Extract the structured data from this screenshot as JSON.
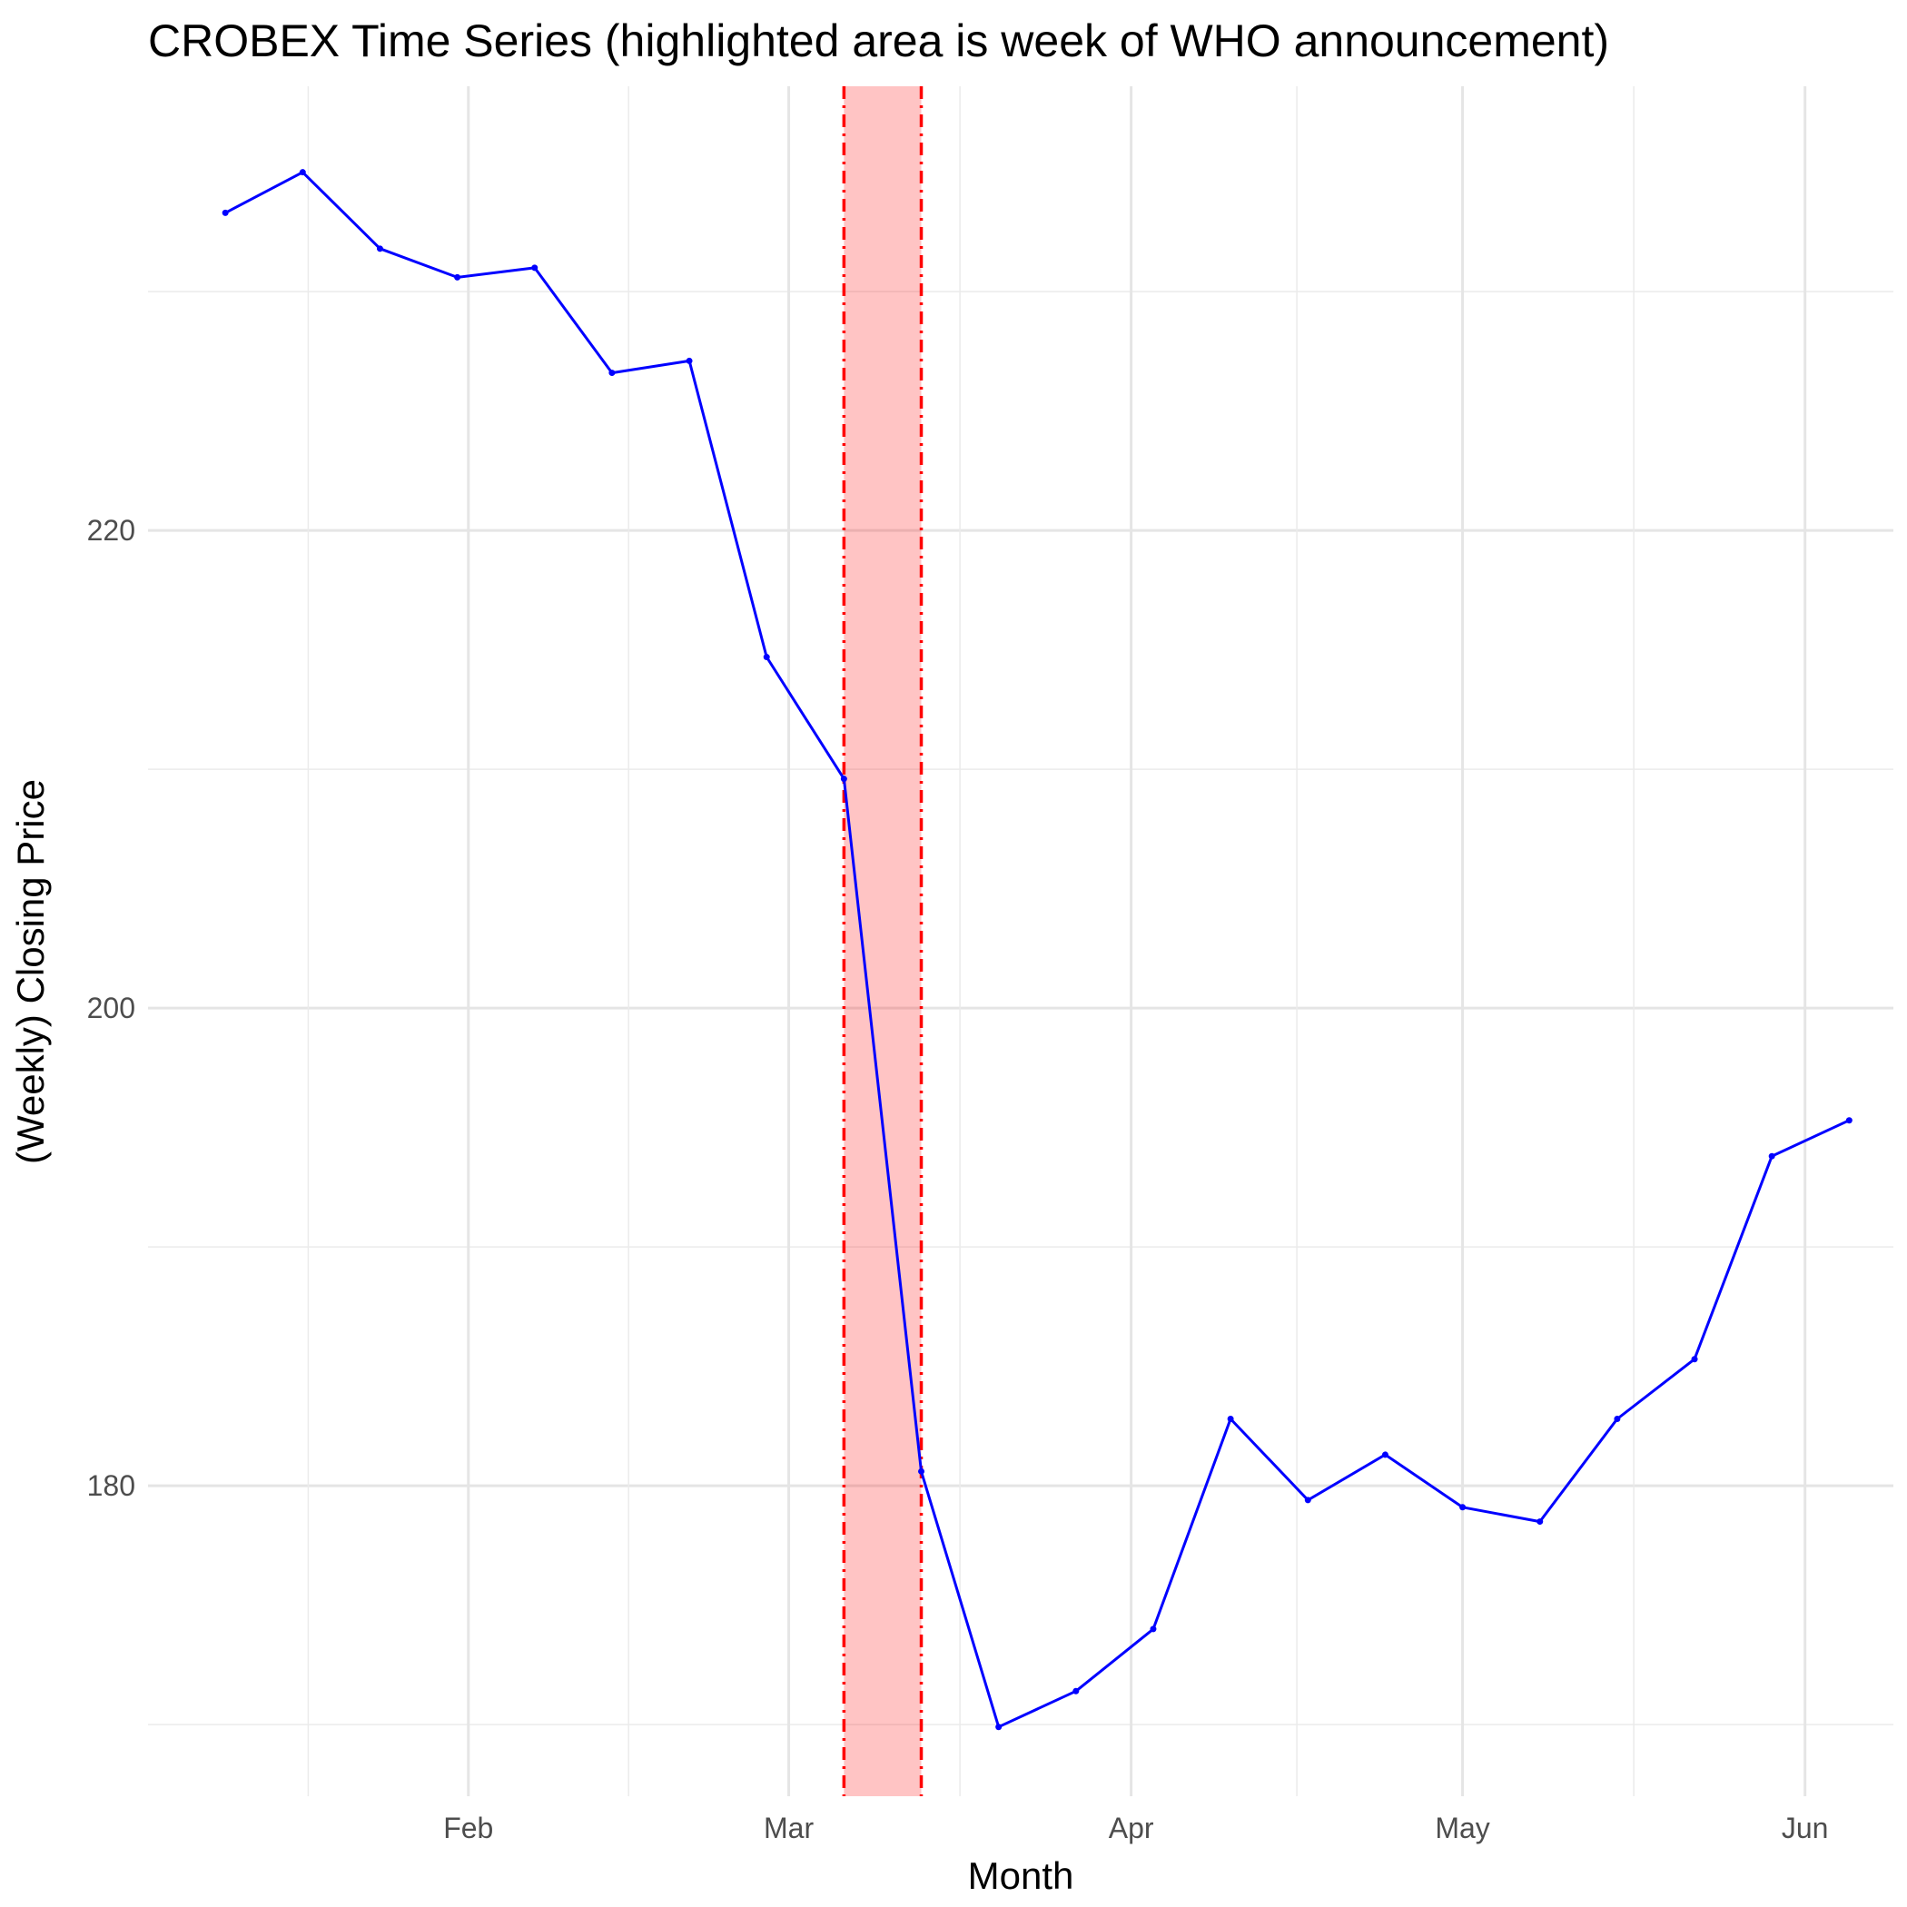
{
  "chart_data": {
    "type": "line",
    "title": "CROBEX Time Series (highlighted area is week of WHO announcement)",
    "xlabel": "Month",
    "ylabel": "(Weekly) Closing Price",
    "x_ticks": [
      {
        "label": "Feb",
        "date": "2020-02-01"
      },
      {
        "label": "Mar",
        "date": "2020-03-01"
      },
      {
        "label": "Apr",
        "date": "2020-04-01"
      },
      {
        "label": "May",
        "date": "2020-05-01"
      },
      {
        "label": "Jun",
        "date": "2020-06-01"
      }
    ],
    "y_ticks": [
      180,
      200,
      220
    ],
    "xlim": [
      "2020-01-03",
      "2020-06-09"
    ],
    "ylim": [
      167,
      238.6
    ],
    "grid": true,
    "highlight": {
      "start": "2020-03-06",
      "end": "2020-03-13",
      "fill_color": "#ff0000",
      "fill_opacity": 0.23,
      "line_color": "#ff0000",
      "line_style": "dot-dash"
    },
    "series": [
      {
        "color": "#0000ff",
        "points": [
          {
            "date": "2020-01-10",
            "value": 233.3
          },
          {
            "date": "2020-01-17",
            "value": 235.0
          },
          {
            "date": "2020-01-24",
            "value": 231.8
          },
          {
            "date": "2020-01-31",
            "value": 230.6
          },
          {
            "date": "2020-02-07",
            "value": 231.0
          },
          {
            "date": "2020-02-14",
            "value": 226.6
          },
          {
            "date": "2020-02-21",
            "value": 227.1
          },
          {
            "date": "2020-02-28",
            "value": 214.7
          },
          {
            "date": "2020-03-06",
            "value": 209.6
          },
          {
            "date": "2020-03-13",
            "value": 180.6
          },
          {
            "date": "2020-03-20",
            "value": 169.9
          },
          {
            "date": "2020-03-27",
            "value": 171.4
          },
          {
            "date": "2020-04-03",
            "value": 174.0
          },
          {
            "date": "2020-04-10",
            "value": 182.8
          },
          {
            "date": "2020-04-17",
            "value": 179.4
          },
          {
            "date": "2020-04-24",
            "value": 181.3
          },
          {
            "date": "2020-05-01",
            "value": 179.1
          },
          {
            "date": "2020-05-08",
            "value": 178.5
          },
          {
            "date": "2020-05-15",
            "value": 182.8
          },
          {
            "date": "2020-05-22",
            "value": 185.3
          },
          {
            "date": "2020-05-29",
            "value": 193.8
          },
          {
            "date": "2020-06-05",
            "value": 195.3
          }
        ]
      }
    ]
  }
}
